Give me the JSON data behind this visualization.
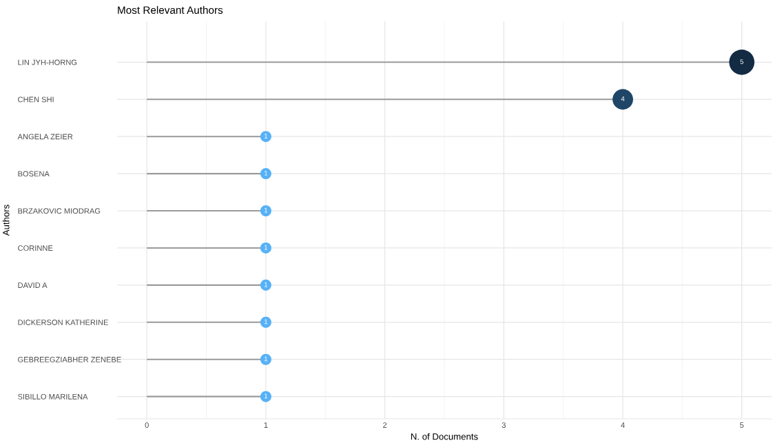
{
  "chart_data": {
    "type": "lollipop",
    "title": "Most Relevant Authors",
    "xlabel": "N. of Documents",
    "ylabel": "Authors",
    "orientation": "horizontal",
    "categories": [
      "LIN JYH-HORNG",
      "CHEN SHI",
      "ANGELA ZEIER",
      "BOSENA",
      "BRZAKOVIC MIODRAG",
      "CORINNE",
      "DAVID A",
      "DICKERSON KATHERINE",
      "GEBREEGZIABHER ZENEBE",
      "SIBILLO MARILENA"
    ],
    "values": [
      5,
      4,
      1,
      1,
      1,
      1,
      1,
      1,
      1,
      1
    ],
    "colors": [
      "#132b43",
      "#1f4667",
      "#56b1f7",
      "#56b1f7",
      "#56b1f7",
      "#56b1f7",
      "#56b1f7",
      "#56b1f7",
      "#56b1f7",
      "#56b1f7"
    ],
    "sizes": [
      1,
      0.66,
      0.19,
      0.19,
      0.19,
      0.19,
      0.19,
      0.19,
      0.19,
      0.19
    ],
    "xlim": [
      -0.25,
      5.25
    ],
    "xticks": [
      0,
      1,
      2,
      3,
      4,
      5
    ],
    "grid": true,
    "data_labels": true
  }
}
